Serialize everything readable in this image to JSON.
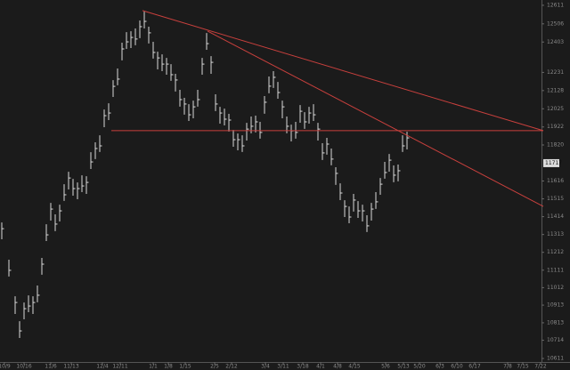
{
  "chart_data": {
    "type": "ohlc",
    "color": "#d9d9d9",
    "x": [
      0,
      1.6,
      3,
      4,
      5,
      6,
      7,
      8,
      9,
      10,
      11,
      12,
      13,
      14,
      15,
      16,
      17,
      18,
      19,
      20,
      21,
      22,
      23,
      24,
      25,
      26,
      27,
      28,
      29,
      30,
      31,
      32,
      33,
      34,
      35,
      36,
      37,
      38,
      39,
      40,
      41,
      42,
      43,
      44,
      45,
      46,
      47,
      48,
      49,
      50,
      51,
      52,
      53,
      54,
      55,
      56,
      57,
      58,
      59,
      60,
      61,
      62,
      63,
      64,
      65,
      66,
      67,
      68,
      69,
      70,
      71,
      72,
      73,
      74,
      75,
      76,
      77,
      78,
      79,
      80,
      81,
      82,
      83,
      84,
      85,
      86,
      87,
      88,
      89,
      90,
      91
    ],
    "high": [
      11381,
      11170,
      10963,
      10822,
      10928,
      10968,
      10963,
      11024,
      11180,
      11371,
      11492,
      11427,
      11482,
      11598,
      11668,
      11628,
      11608,
      11648,
      11643,
      11779,
      11835,
      11875,
      12021,
      12056,
      12187,
      12253,
      12399,
      12459,
      12464,
      12480,
      12525,
      12575,
      12490,
      12404,
      12348,
      12333,
      12313,
      12278,
      12223,
      12132,
      12087,
      12051,
      12071,
      12132,
      12313,
      12454,
      12323,
      12107,
      12036,
      12026,
      11996,
      11905,
      11885,
      11875,
      11945,
      11981,
      11986,
      11951,
      12097,
      12208,
      12238,
      12177,
      12071,
      11981,
      11935,
      11951,
      12046,
      12006,
      12036,
      12051,
      11945,
      11830,
      11860,
      11800,
      11694,
      11603,
      11507,
      11472,
      11543,
      11502,
      11482,
      11422,
      11492,
      11553,
      11633,
      11724,
      11769,
      11704,
      11709,
      11875,
      11895
    ],
    "low": [
      11286,
      11075,
      10863,
      10727,
      10833,
      10873,
      10863,
      10929,
      11085,
      11276,
      11392,
      11332,
      11387,
      11503,
      11568,
      11533,
      11513,
      11553,
      11543,
      11684,
      11740,
      11780,
      11921,
      11961,
      12092,
      12158,
      12299,
      12364,
      12369,
      12385,
      12425,
      12480,
      12395,
      12309,
      12248,
      12238,
      12218,
      12183,
      12123,
      12037,
      11992,
      11956,
      11971,
      12037,
      12218,
      12359,
      12223,
      12012,
      11941,
      11931,
      11896,
      11810,
      11790,
      11780,
      11845,
      11886,
      11891,
      11856,
      11997,
      12113,
      12143,
      12082,
      11971,
      11886,
      11840,
      11856,
      11946,
      11911,
      11941,
      11956,
      11845,
      11735,
      11765,
      11705,
      11594,
      11508,
      11412,
      11377,
      11443,
      11407,
      11387,
      11327,
      11392,
      11458,
      11538,
      11629,
      11669,
      11609,
      11614,
      11780,
      11795
    ],
    "close": [
      11346,
      11110,
      10928,
      10767,
      10893,
      10908,
      10928,
      10969,
      11145,
      11311,
      11457,
      11372,
      11447,
      11538,
      11633,
      11573,
      11573,
      11588,
      11608,
      11724,
      11800,
      11815,
      11986,
      12001,
      12152,
      12193,
      12364,
      12404,
      12429,
      12420,
      12490,
      12520,
      12455,
      12344,
      12313,
      12278,
      12278,
      12218,
      12188,
      12077,
      12052,
      11991,
      12036,
      12077,
      12278,
      12394,
      12288,
      12052,
      12001,
      11966,
      11961,
      11850,
      11850,
      11815,
      11910,
      11926,
      11951,
      11891,
      12062,
      12153,
      12203,
      12117,
      12036,
      11926,
      11900,
      11891,
      12011,
      11951,
      12001,
      11991,
      11910,
      11775,
      11825,
      11740,
      11659,
      11548,
      11472,
      11412,
      11508,
      11447,
      11447,
      11362,
      11457,
      11498,
      11598,
      11664,
      11734,
      11649,
      11674,
      11815,
      11860
    ],
    "xlim": [
      0,
      121.6
    ],
    "ylim": [
      10596,
      12641
    ],
    "yticks": [
      12611,
      12506,
      12403,
      12231,
      12128,
      12025,
      11922,
      11820,
      11616,
      11515,
      11414,
      11313,
      11212,
      11111,
      11012,
      10913,
      10813,
      10714,
      10611
    ],
    "xticks": [
      {
        "value": 0.6,
        "label": "10/9"
      },
      {
        "value": 5,
        "label": "10/16"
      },
      {
        "value": 11,
        "label": "11/6"
      },
      {
        "value": 15.6,
        "label": "11/13"
      },
      {
        "value": 22.6,
        "label": "12/4"
      },
      {
        "value": 26.6,
        "label": "12/11"
      },
      {
        "value": 34,
        "label": "1/1"
      },
      {
        "value": 37.4,
        "label": "1/8"
      },
      {
        "value": 41.2,
        "label": "1/15"
      },
      {
        "value": 47.8,
        "label": "2/5"
      },
      {
        "value": 51.6,
        "label": "2/12"
      },
      {
        "value": 59.2,
        "label": "3/4"
      },
      {
        "value": 63.2,
        "label": "3/11"
      },
      {
        "value": 67.6,
        "label": "3/18"
      },
      {
        "value": 71.6,
        "label": "4/1"
      },
      {
        "value": 75.4,
        "label": "4/8"
      },
      {
        "value": 79.2,
        "label": "4/15"
      },
      {
        "value": 86.2,
        "label": "5/6"
      },
      {
        "value": 90.2,
        "label": "5/13"
      },
      {
        "value": 93.8,
        "label": "5/20"
      },
      {
        "value": 98.4,
        "label": "6/3"
      },
      {
        "value": 102.2,
        "label": "6/10"
      },
      {
        "value": 106.2,
        "label": "6/17"
      },
      {
        "value": 113.6,
        "label": "7/8"
      },
      {
        "value": 117,
        "label": "7/15"
      },
      {
        "value": 121,
        "label": "7/22"
      }
    ],
    "trendline_color": "#c9403d",
    "trendlines": [
      {
        "x": [
          31.6,
          121.6
        ],
        "y": [
          12581,
          11901
        ]
      },
      {
        "x": [
          46.2,
          121.6
        ],
        "y": [
          12465,
          11472
        ]
      },
      {
        "x": [
          24.6,
          121.6
        ],
        "y": [
          11901,
          11901
        ]
      }
    ],
    "last_price": 11717
  }
}
